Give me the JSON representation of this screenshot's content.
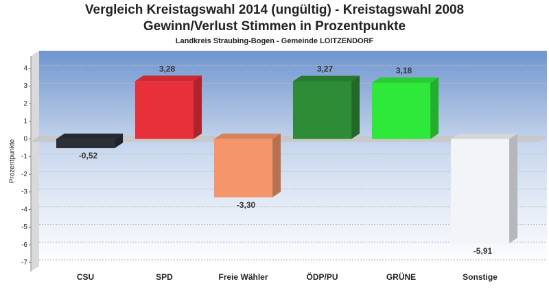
{
  "chart_data": {
    "type": "bar3d",
    "title": "Vergleich Kreistagswahl 2014 (ungültig) - Kreistagswahl 2008",
    "subtitle": "Gewinn/Verlust Stimmen in Prozentpunkte",
    "caption": "Landkreis Straubing-Bogen - Gemeinde LOITZENDORF",
    "y_label": "Prozentpunkte",
    "categories": [
      "CSU",
      "SPD",
      "Freie Wähler",
      "ÖDP/PU",
      "GRÜNE",
      "Sonstige"
    ],
    "values": [
      -0.52,
      3.28,
      -3.3,
      3.27,
      3.18,
      -5.91
    ],
    "value_labels": [
      "-0,52",
      "3,28",
      "-3,30",
      "3,27",
      "3,18",
      "-5,91"
    ],
    "colors": [
      "#2b2f38",
      "#e8303a",
      "#f4956a",
      "#2e8b36",
      "#2ee83a",
      "#f2f4f8"
    ],
    "ylim": [
      -7.2,
      5
    ],
    "yticks": [
      4,
      3,
      2,
      1,
      0,
      -1,
      -2,
      -3,
      -4,
      -5,
      -6,
      -7
    ],
    "grid": true
  }
}
